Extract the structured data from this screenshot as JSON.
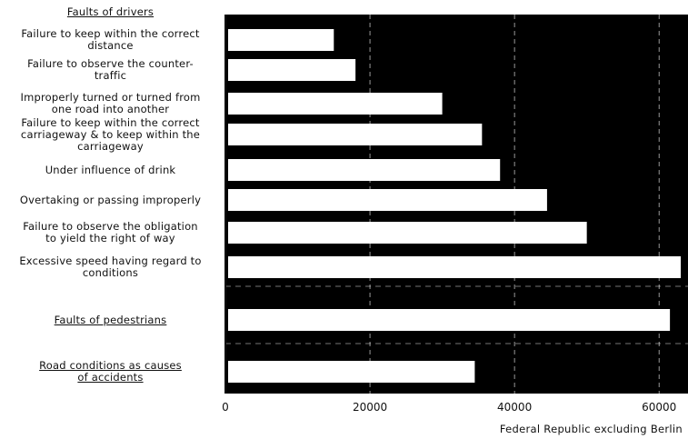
{
  "chart_data": {
    "type": "bar",
    "orientation": "horizontal",
    "title": "",
    "xlabel": "Federal Republic excluding Berlin",
    "ylabel": "",
    "xlim": [
      0,
      64000
    ],
    "xticks": [
      0,
      20000,
      40000,
      60000
    ],
    "grid": true,
    "categories": [
      "Faults of drivers",
      "Failure to keep within the correct distance",
      "Failure to observe the counter-traffic",
      "Improperly turned or turned from one road into another",
      "Failure to keep within the correct carriageway & to keep within the carriageway",
      "Under influence of drink",
      "Overtaking or passing improperly",
      "Failure to observe the obligation to yield the right of way",
      "Excessive speed having regard to conditions",
      "Faults of pedestrians",
      "Road conditions as causes of accidents"
    ],
    "values": [
      null,
      15000,
      18000,
      30000,
      35500,
      38000,
      44500,
      50000,
      63000,
      61500,
      34500
    ]
  },
  "labels": [
    {
      "lines": [
        "Faults of drivers"
      ],
      "heading": true
    },
    {
      "lines": [
        "Failure to keep within the correct",
        "distance"
      ]
    },
    {
      "lines": [
        "Failure to observe the counter-",
        "traffic"
      ]
    },
    {
      "lines": [
        "Improperly turned or turned from",
        "one road into another"
      ]
    },
    {
      "lines": [
        "Failure to keep within the correct",
        "carriageway & to keep within the",
        "carriageway"
      ]
    },
    {
      "lines": [
        "Under influence of drink"
      ]
    },
    {
      "lines": [
        "Overtaking or passing improperly"
      ]
    },
    {
      "lines": [
        "Failure to observe the obligation",
        "to yield the right of way"
      ]
    },
    {
      "lines": [
        "Excessive speed having regard to",
        "conditions"
      ]
    },
    {
      "lines": [
        "Faults of pedestrians"
      ],
      "heading": true
    },
    {
      "lines": [
        "Road conditions as causes",
        "of accidents"
      ],
      "heading": true
    }
  ],
  "tick_labels": [
    "0",
    "20000",
    "40000",
    "60000"
  ],
  "colors": {
    "background": "#000000",
    "bar": "#ffffff",
    "grid": "#ffffff",
    "text": "#111111"
  }
}
